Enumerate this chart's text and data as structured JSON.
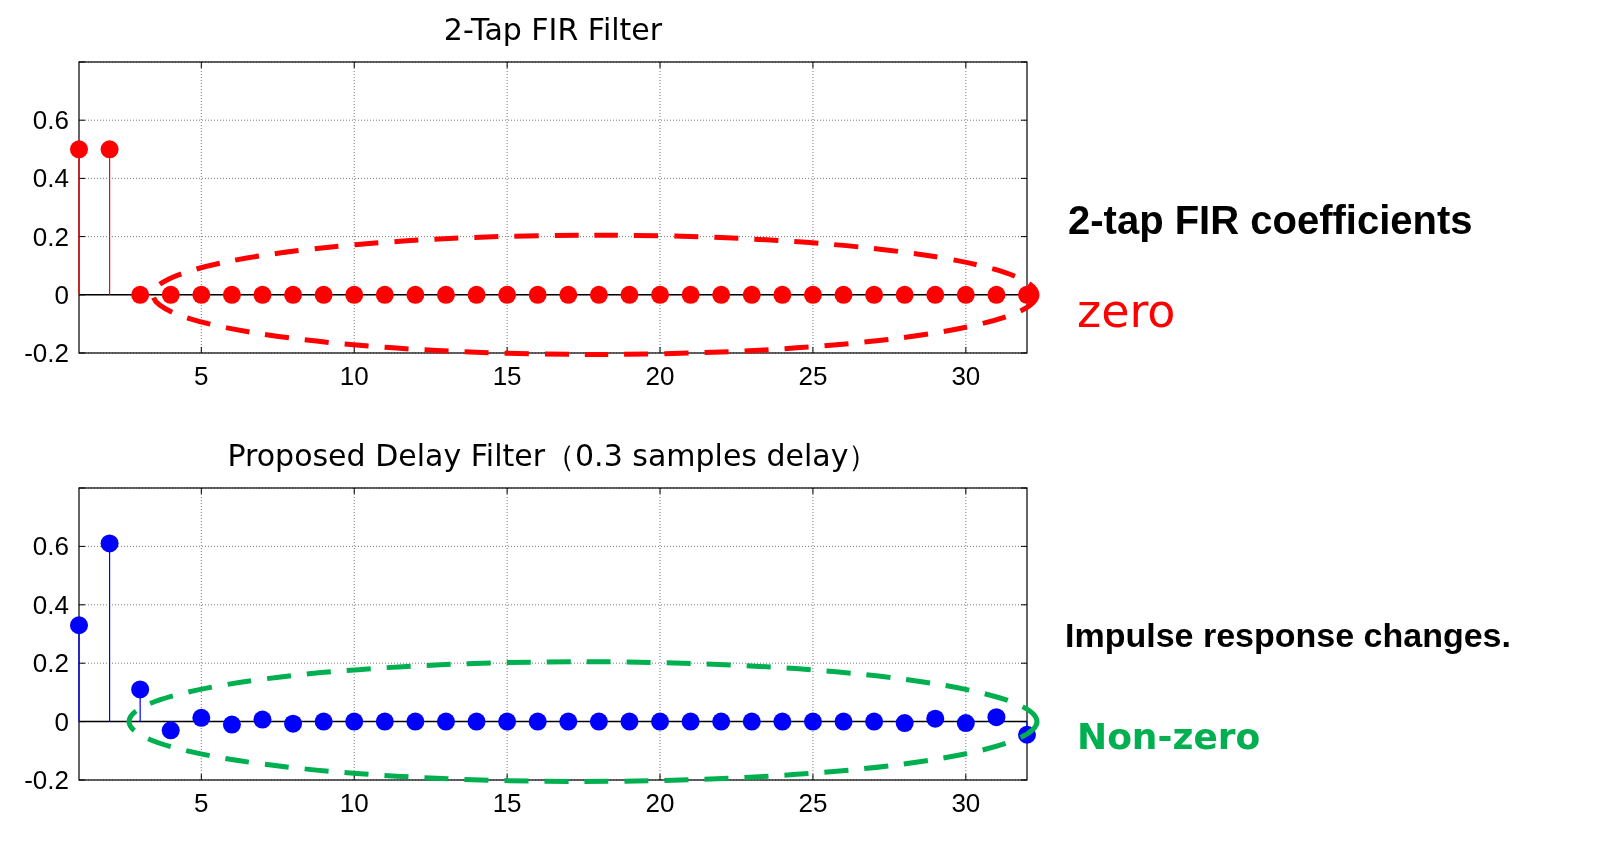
{
  "chart_data": [
    {
      "type": "lollipop",
      "title": "2-Tap FIR Filter",
      "x": [
        1,
        2,
        3,
        4,
        5,
        6,
        7,
        8,
        9,
        10,
        11,
        12,
        13,
        14,
        15,
        16,
        17,
        18,
        19,
        20,
        21,
        22,
        23,
        24,
        25,
        26,
        27,
        28,
        29,
        30,
        31,
        32
      ],
      "series": [
        {
          "color": "#ff0000",
          "values": [
            0.5,
            0.5,
            0,
            0,
            0,
            0,
            0,
            0,
            0,
            0,
            0,
            0,
            0,
            0,
            0,
            0,
            0,
            0,
            0,
            0,
            0,
            0,
            0,
            0,
            0,
            0,
            0,
            0,
            0,
            0,
            0,
            0
          ]
        }
      ],
      "xlim": [
        1,
        32
      ],
      "ylim": [
        -0.2,
        0.8
      ],
      "xticks": [
        5,
        10,
        15,
        20,
        25,
        30
      ],
      "yticks": [
        -0.2,
        0,
        0.2,
        0.4,
        0.6,
        {
          "value": 0.8,
          "label": null
        }
      ],
      "grid": true,
      "marker": "circle",
      "annotations": [
        "2-tap FIR coefficients",
        "zero"
      ]
    },
    {
      "type": "lollipop",
      "title": "Proposed Delay Filter（0.3 samples delay）",
      "x": [
        1,
        2,
        3,
        4,
        5,
        6,
        7,
        8,
        9,
        10,
        11,
        12,
        13,
        14,
        15,
        16,
        17,
        18,
        19,
        20,
        21,
        22,
        23,
        24,
        25,
        26,
        27,
        28,
        29,
        30,
        31,
        32
      ],
      "series": [
        {
          "color": "#0000ff",
          "values": [
            0.33,
            0.61,
            0.11,
            -0.03,
            0.013,
            -0.01,
            0.007,
            -0.007,
            0,
            0,
            0,
            0,
            0,
            0,
            0,
            0,
            0,
            0,
            0,
            0,
            0,
            0,
            0,
            0,
            0,
            0,
            0,
            -0.005,
            0.01,
            -0.005,
            0.015,
            -0.045
          ]
        }
      ],
      "xlim": [
        1,
        32
      ],
      "ylim": [
        -0.2,
        0.8
      ],
      "xticks": [
        5,
        10,
        15,
        20,
        25,
        30
      ],
      "yticks": [
        -0.2,
        0,
        0.2,
        0.4,
        0.6,
        {
          "value": 0.8,
          "label": null
        }
      ],
      "grid": true,
      "marker": "circle",
      "annotations": [
        "Impulse response changes.",
        "Non-zero"
      ]
    }
  ]
}
